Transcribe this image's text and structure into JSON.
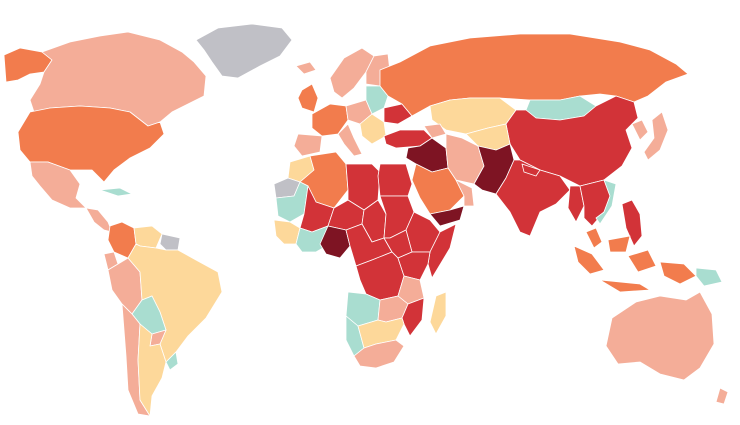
{
  "map": {
    "palette": {
      "level0": "#a9ddd0",
      "level1": "#fdd89a",
      "level2": "#f4ad98",
      "level3": "#f27c4d",
      "level4": "#d23338",
      "level5": "#7e1423",
      "nodata": "#c0c0c6",
      "ocean": "#ffffff",
      "border": "#ffffff"
    },
    "regions": [
      {
        "name": "alaska",
        "level": "level3"
      },
      {
        "name": "canada",
        "level": "level2"
      },
      {
        "name": "greenland",
        "level": "nodata"
      },
      {
        "name": "usa",
        "level": "level3"
      },
      {
        "name": "mexico",
        "level": "level2"
      },
      {
        "name": "central-america",
        "level": "level2"
      },
      {
        "name": "cuba",
        "level": "level0"
      },
      {
        "name": "colombia",
        "level": "level3"
      },
      {
        "name": "venezuela",
        "level": "level1"
      },
      {
        "name": "guyanas",
        "level": "nodata"
      },
      {
        "name": "ecuador",
        "level": "level2"
      },
      {
        "name": "peru",
        "level": "level2"
      },
      {
        "name": "brazil",
        "level": "level1"
      },
      {
        "name": "bolivia",
        "level": "level0"
      },
      {
        "name": "paraguay",
        "level": "level2"
      },
      {
        "name": "chile",
        "level": "level2"
      },
      {
        "name": "argentina",
        "level": "level1"
      },
      {
        "name": "uruguay",
        "level": "level0"
      },
      {
        "name": "iceland",
        "level": "level2"
      },
      {
        "name": "scandinavia",
        "level": "level2"
      },
      {
        "name": "finland",
        "level": "level2"
      },
      {
        "name": "uk",
        "level": "level3"
      },
      {
        "name": "western-europe",
        "level": "level3"
      },
      {
        "name": "iberia",
        "level": "level2"
      },
      {
        "name": "central-europe",
        "level": "level2"
      },
      {
        "name": "eastern-europe",
        "level": "level0"
      },
      {
        "name": "ukraine",
        "level": "level4"
      },
      {
        "name": "balkans",
        "level": "level1"
      },
      {
        "name": "italy",
        "level": "level2"
      },
      {
        "name": "russia",
        "level": "level3"
      },
      {
        "name": "kazakhstan",
        "level": "level1"
      },
      {
        "name": "mongolia",
        "level": "level0"
      },
      {
        "name": "china",
        "level": "level4"
      },
      {
        "name": "korea",
        "level": "level2"
      },
      {
        "name": "japan",
        "level": "level2"
      },
      {
        "name": "turkey",
        "level": "level4"
      },
      {
        "name": "caucasus",
        "level": "level2"
      },
      {
        "name": "syria-iraq",
        "level": "level5"
      },
      {
        "name": "iran",
        "level": "level2"
      },
      {
        "name": "central-asia",
        "level": "level1"
      },
      {
        "name": "afghanistan-pakistan",
        "level": "level5"
      },
      {
        "name": "india",
        "level": "level4"
      },
      {
        "name": "nepal",
        "level": "level4"
      },
      {
        "name": "myanmar",
        "level": "level4"
      },
      {
        "name": "thailand-indochina",
        "level": "level4"
      },
      {
        "name": "vietnam",
        "level": "level0"
      },
      {
        "name": "philippines",
        "level": "level4"
      },
      {
        "name": "malaysia",
        "level": "level3"
      },
      {
        "name": "indonesia",
        "level": "level3"
      },
      {
        "name": "papua",
        "level": "level3"
      },
      {
        "name": "png",
        "level": "level0"
      },
      {
        "name": "australia",
        "level": "level2"
      },
      {
        "name": "new-zealand",
        "level": "level2"
      },
      {
        "name": "saudi-arabia",
        "level": "level3"
      },
      {
        "name": "yemen",
        "level": "level5"
      },
      {
        "name": "oman-gulf",
        "level": "level2"
      },
      {
        "name": "morocco",
        "level": "level1"
      },
      {
        "name": "western-sahara",
        "level": "nodata"
      },
      {
        "name": "algeria",
        "level": "level3"
      },
      {
        "name": "libya",
        "level": "level4"
      },
      {
        "name": "egypt",
        "level": "level4"
      },
      {
        "name": "mauritania",
        "level": "level0"
      },
      {
        "name": "mali",
        "level": "level4"
      },
      {
        "name": "niger",
        "level": "level4"
      },
      {
        "name": "chad",
        "level": "level4"
      },
      {
        "name": "sudan",
        "level": "level4"
      },
      {
        "name": "ethiopia",
        "level": "level4"
      },
      {
        "name": "somalia",
        "level": "level4"
      },
      {
        "name": "senegal-guinea",
        "level": "level1"
      },
      {
        "name": "west-coast-africa",
        "level": "level0"
      },
      {
        "name": "nigeria",
        "level": "level5"
      },
      {
        "name": "cameroon-car",
        "level": "level4"
      },
      {
        "name": "south-sudan",
        "level": "level4"
      },
      {
        "name": "drc",
        "level": "level4"
      },
      {
        "name": "kenya-uganda",
        "level": "level4"
      },
      {
        "name": "tanzania",
        "level": "level2"
      },
      {
        "name": "angola",
        "level": "level0"
      },
      {
        "name": "zambia",
        "level": "level2"
      },
      {
        "name": "mozambique",
        "level": "level4"
      },
      {
        "name": "namibia",
        "level": "level0"
      },
      {
        "name": "botswana-zimbabwe",
        "level": "level1"
      },
      {
        "name": "south-africa",
        "level": "level2"
      },
      {
        "name": "madagascar",
        "level": "level1"
      }
    ]
  }
}
